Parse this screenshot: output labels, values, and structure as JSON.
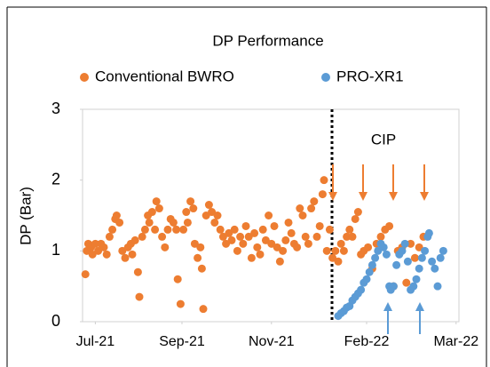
{
  "chart_data": {
    "type": "scatter",
    "title": "DP Performance",
    "y_label": "DP (Bar)",
    "annotation": "CIP",
    "legend": "top",
    "series": [
      {
        "name": "Conventional BWRO",
        "color": "#ed7d31",
        "x": [
          -7,
          -6,
          -5,
          -3,
          -2,
          0,
          2,
          4,
          6,
          8,
          10,
          12,
          14,
          15,
          17,
          19,
          21,
          23,
          25,
          26,
          28,
          30,
          31,
          33,
          35,
          37,
          38,
          40,
          42,
          43,
          45,
          47,
          49,
          51,
          53,
          55,
          57,
          58,
          60,
          62,
          64,
          65,
          67,
          69,
          70,
          72,
          74,
          75,
          76,
          78,
          80,
          82,
          84,
          86,
          88,
          90,
          92,
          94,
          96,
          98,
          100,
          102,
          104,
          106,
          108,
          110,
          112,
          114,
          116,
          118,
          120,
          122,
          124,
          126,
          128,
          130,
          132,
          134,
          136,
          138,
          140,
          142,
          144,
          146,
          148,
          150,
          152,
          154,
          156,
          158,
          160,
          161,
          163,
          165,
          167,
          169,
          171,
          173,
          175,
          177,
          179,
          181,
          183,
          185,
          187,
          189,
          192,
          195,
          198,
          201,
          204,
          207,
          210,
          213,
          216,
          219,
          222,
          225,
          228,
          231
        ],
        "values": [
          0.67,
          1.0,
          1.1,
          1.05,
          0.95,
          1.1,
          1.0,
          1.1,
          1.05,
          0.95,
          1.2,
          1.3,
          1.45,
          1.5,
          1.4,
          1.0,
          0.9,
          1.05,
          1.1,
          0.95,
          1.15,
          0.7,
          0.35,
          1.2,
          1.3,
          1.5,
          1.4,
          1.55,
          1.3,
          1.7,
          1.6,
          1.2,
          1.05,
          1.3,
          1.45,
          1.4,
          1.3,
          0.6,
          0.25,
          1.3,
          1.55,
          1.4,
          1.7,
          1.6,
          1.1,
          0.9,
          1.05,
          0.75,
          0.18,
          1.5,
          1.65,
          1.55,
          1.4,
          1.5,
          1.3,
          1.2,
          1.1,
          1.25,
          1.15,
          1.3,
          1.0,
          1.2,
          1.1,
          1.35,
          1.2,
          0.9,
          1.25,
          1.05,
          0.95,
          1.3,
          1.15,
          1.5,
          1.1,
          1.35,
          1.05,
          0.85,
          1.0,
          1.15,
          1.4,
          1.25,
          1.1,
          1.05,
          1.6,
          1.5,
          1.2,
          1.1,
          1.6,
          1.7,
          1.2,
          1.35,
          1.8,
          2.0,
          1.0,
          1.3,
          0.9,
          1.0,
          0.85,
          1.1,
          1.0,
          1.2,
          1.3,
          1.2,
          1.45,
          1.55,
          0.95,
          1.0,
          1.05,
          0.75,
          1.1,
          1.2,
          1.3,
          1.35,
          0.5,
          1.0,
          1.05,
          0.55,
          1.1,
          0.9,
          1.05,
          1.2
        ]
      },
      {
        "name": "PRO-XR1",
        "color": "#5b9bd5",
        "x": [
          171,
          173,
          175,
          177,
          179,
          181,
          183,
          185,
          187,
          189,
          191,
          193,
          195,
          197,
          199,
          201,
          203,
          205,
          207,
          208,
          210,
          212,
          214,
          216,
          218,
          220,
          222,
          224,
          226,
          228,
          230,
          232,
          234,
          235,
          237,
          239,
          241,
          243,
          245
        ],
        "values": [
          0.08,
          0.12,
          0.15,
          0.2,
          0.22,
          0.3,
          0.35,
          0.4,
          0.45,
          0.55,
          0.6,
          0.7,
          0.8,
          0.9,
          1.0,
          1.1,
          1.05,
          0.95,
          0.5,
          0.45,
          0.5,
          0.8,
          0.95,
          1.0,
          1.1,
          0.85,
          0.45,
          0.5,
          0.6,
          0.75,
          0.9,
          1.0,
          1.2,
          1.25,
          0.85,
          0.75,
          0.5,
          0.9,
          1.0
        ]
      }
    ],
    "xlim": [
      -9,
      256
    ],
    "xticks": [
      {
        "value": 0,
        "label": "Jul-21"
      },
      {
        "value": 61,
        "label": "Sep-21"
      },
      {
        "value": 124,
        "label": "Nov-21"
      },
      {
        "value": 191,
        "label": "Feb-22"
      },
      {
        "value": 254,
        "label": "Mar-22"
      }
    ],
    "ylim": [
      0,
      3
    ],
    "yticks": [
      0,
      1,
      2,
      3
    ]
  }
}
